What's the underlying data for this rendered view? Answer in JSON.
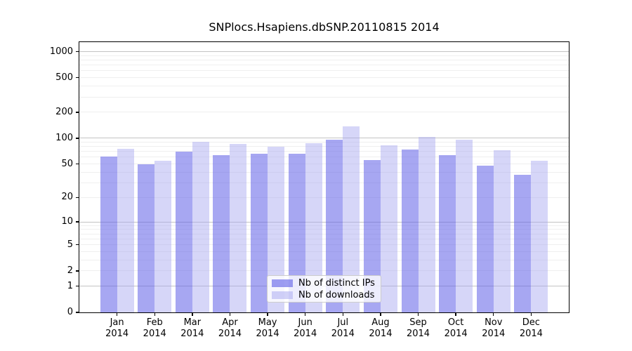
{
  "figure": {
    "title": "SNPlocs.Hsapiens.dbSNP.20110815 2014"
  },
  "chart_data": {
    "type": "bar",
    "title": "SNPlocs.Hsapiens.dbSNP.20110815 2014",
    "scale": "log10(value+1)",
    "grid": "on",
    "legend_position": "bottom-center-inside",
    "categories": [
      {
        "month": "Jan",
        "year": "2014"
      },
      {
        "month": "Feb",
        "year": "2014"
      },
      {
        "month": "Mar",
        "year": "2014"
      },
      {
        "month": "Apr",
        "year": "2014"
      },
      {
        "month": "May",
        "year": "2014"
      },
      {
        "month": "Jun",
        "year": "2014"
      },
      {
        "month": "Jul",
        "year": "2014"
      },
      {
        "month": "Aug",
        "year": "2014"
      },
      {
        "month": "Sep",
        "year": "2014"
      },
      {
        "month": "Oct",
        "year": "2014"
      },
      {
        "month": "Nov",
        "year": "2014"
      },
      {
        "month": "Dec",
        "year": "2014"
      }
    ],
    "series": [
      {
        "name": "Nb of distinct IPs",
        "color": "#5e5ee8",
        "alpha": 0.55,
        "values": [
          61,
          50,
          70,
          63,
          66,
          66,
          97,
          56,
          74,
          64,
          48,
          37
        ]
      },
      {
        "name": "Nb of downloads",
        "color": "#a5a5f0",
        "alpha": 0.45,
        "values": [
          75,
          55,
          90,
          86,
          80,
          87,
          137,
          82,
          103,
          96,
          72,
          55
        ]
      }
    ],
    "y_ticks": [
      0,
      1,
      2,
      5,
      10,
      20,
      50,
      100,
      200,
      500,
      1000
    ],
    "ylim": [
      0,
      1287
    ],
    "grid_colors": {
      "major": "#c3c3c3",
      "minor": "#efefef"
    }
  }
}
